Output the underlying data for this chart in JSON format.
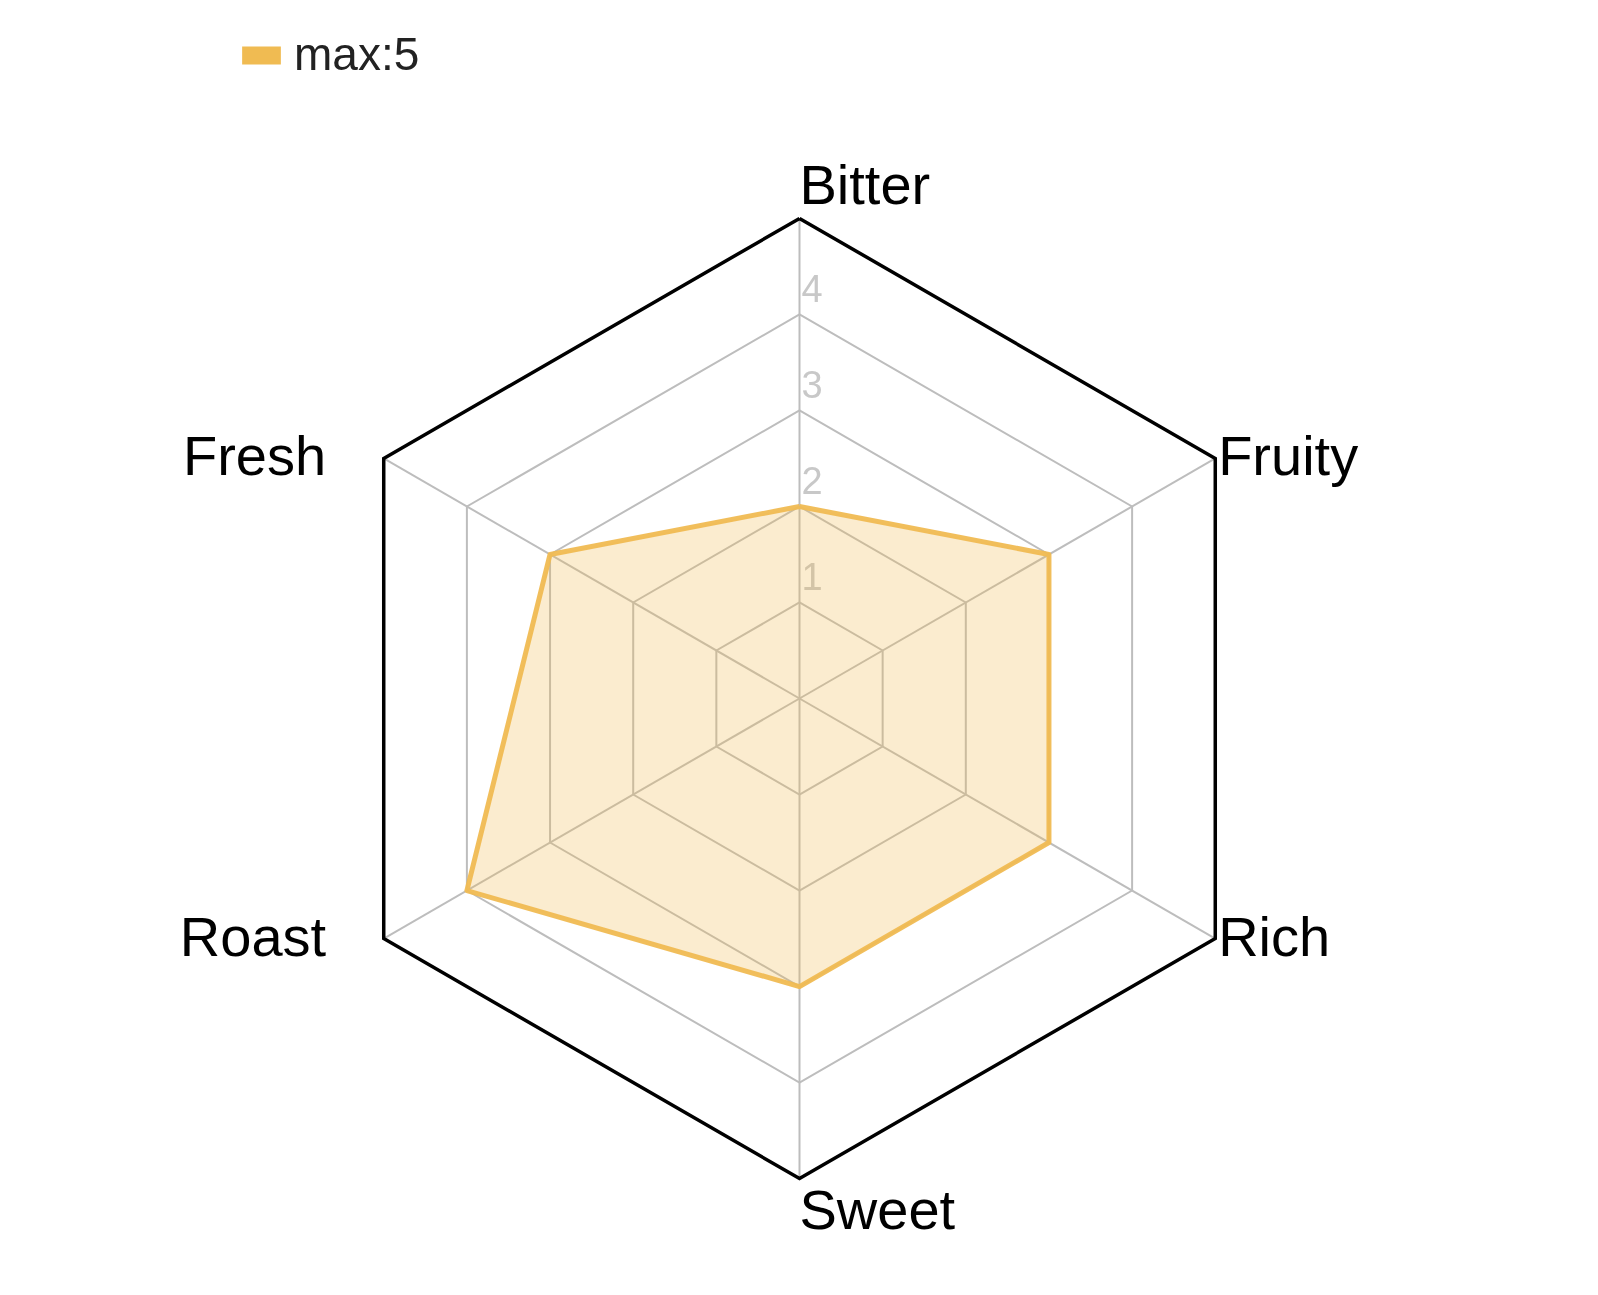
{
  "chart_data": {
    "type": "radar",
    "categories": [
      "Bitter",
      "Fruity",
      "Rich",
      "Sweet",
      "Roast",
      "Fresh"
    ],
    "series": [
      {
        "name": "max:5",
        "color": "#f0bb52",
        "values": [
          2,
          3,
          3,
          3,
          4,
          3
        ]
      }
    ],
    "ylim": [
      0,
      5
    ],
    "yticks": [
      1,
      2,
      3,
      4
    ],
    "legend": "top"
  }
}
